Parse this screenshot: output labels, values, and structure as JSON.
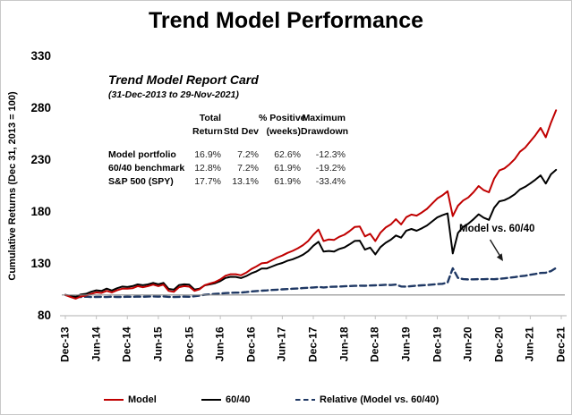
{
  "report_card": {
    "title": "Trend Model Report Card",
    "subtitle": "(31-Dec-2013 to 29-Nov-2021)",
    "columns": [
      [
        "Total",
        "Return"
      ],
      [
        "",
        "Std Dev"
      ],
      [
        "% Positive",
        "(weeks)"
      ],
      [
        "Maximum",
        "Drawdown"
      ]
    ],
    "rows": [
      {
        "label": "Model portfolio",
        "values": [
          "16.9%",
          "7.2%",
          "62.6%",
          "-12.3%"
        ]
      },
      {
        "label": "60/40 benchmark",
        "values": [
          "12.8%",
          "7.2%",
          "61.9%",
          "-19.2%"
        ]
      },
      {
        "label": "S&P 500 (SPY)",
        "values": [
          "17.7%",
          "13.1%",
          "61.9%",
          "-33.4%"
        ]
      }
    ]
  },
  "annotation": {
    "text": "Model vs. 60/40"
  },
  "chart_data": {
    "type": "line",
    "title": "Trend Model Performance",
    "ylabel": "Cumulative Returns (Dec 31, 2013 = 100)",
    "xlabel": "",
    "ylim": [
      80,
      330
    ],
    "y_ticks": [
      330,
      280,
      230,
      180,
      130,
      80
    ],
    "x_tick_labels": [
      "Dec-13",
      "Jun-14",
      "Dec-14",
      "Jun-15",
      "Dec-15",
      "Jun-16",
      "Dec-16",
      "Jun-17",
      "Dec-17",
      "Jun-18",
      "Dec-18",
      "Jun-19",
      "Dec-19",
      "Jun-20",
      "Dec-20",
      "Jun-21",
      "Dec-21"
    ],
    "x_unit": "months since Dec-2013 (monthly points, Dec-13 = index 0 through Nov-21 = index 95)",
    "baseline": 100,
    "baseline_color": "#8C8C8C",
    "grid": false,
    "legend_position": "bottom",
    "series": [
      {
        "name": "Model",
        "color": "#C00000",
        "style": "solid",
        "values": [
          100,
          98,
          96.5,
          98.5,
          99.5,
          101,
          102.5,
          102,
          104,
          102.5,
          104.5,
          106,
          106,
          106.5,
          108.5,
          107.5,
          108.5,
          110,
          108.5,
          110,
          104,
          103,
          107.5,
          108.5,
          108,
          104,
          105.5,
          109.5,
          111,
          112.5,
          115,
          118.5,
          120,
          120,
          119,
          121.5,
          125,
          127.5,
          130.5,
          131,
          133.5,
          136,
          138,
          140.5,
          142.5,
          145,
          148,
          152,
          158,
          163,
          152,
          153.5,
          153,
          156,
          158,
          161.5,
          165.5,
          166,
          156.5,
          159,
          152,
          160,
          165,
          168,
          173,
          168,
          175,
          177.5,
          176.5,
          179.5,
          183,
          188,
          193,
          196,
          200,
          176,
          186,
          191,
          194,
          199,
          205,
          201,
          199,
          212,
          220,
          222,
          226,
          231,
          238,
          242,
          248,
          254,
          261,
          252,
          266,
          278
        ]
      },
      {
        "name": "60/40",
        "color": "#000000",
        "style": "solid",
        "values": [
          100,
          99,
          98.2,
          100.5,
          101.1,
          103.1,
          104.5,
          103.9,
          106.1,
          104.3,
          106.5,
          108.1,
          107.7,
          108.5,
          110.2,
          109.4,
          110.2,
          111.6,
          110.3,
          111.6,
          105.9,
          105.1,
          109.5,
          110.3,
          109.9,
          105.3,
          106.1,
          109.3,
          110.3,
          111.4,
          113.4,
          116.4,
          117.5,
          117.4,
          116.3,
          118.2,
          120.9,
          122.8,
          125.4,
          125.5,
          127.4,
          129.4,
          130.9,
          132.9,
          134.4,
          136.4,
          138.8,
          142.2,
          147.4,
          151.3,
          141.8,
          142.4,
          141.8,
          144.3,
          145.8,
          148.7,
          152.1,
          152.3,
          143.7,
          145.7,
          139.1,
          146.1,
          150.3,
          153.3,
          157.3,
          155.3,
          162,
          163.6,
          161.9,
          164.2,
          167,
          170.9,
          174.7,
          176.9,
          178.6,
          140,
          159.7,
          165.7,
          168.7,
          172.9,
          177.8,
          174.5,
          172.4,
          184,
          190.3,
          191.4,
          193.8,
          197.1,
          201.7,
          204.2,
          207.5,
          211.1,
          215.3,
          207.4,
          216.3,
          220.6
        ]
      },
      {
        "name": "Relative (Model vs. 60/40)",
        "color": "#1F3864",
        "style": "dashed",
        "values": [
          100,
          99,
          98.3,
          98,
          98.4,
          98,
          98.1,
          98.2,
          98,
          98.3,
          98.1,
          98.1,
          98.4,
          98.2,
          98.5,
          98.3,
          98.5,
          98.6,
          98.4,
          98.6,
          98.2,
          98,
          98.2,
          98.4,
          98.3,
          98.8,
          99.4,
          100.2,
          100.6,
          101,
          101.4,
          101.8,
          102.1,
          102.2,
          102.3,
          102.8,
          103.4,
          103.8,
          104.1,
          104.4,
          104.8,
          105.1,
          105.4,
          105.7,
          106,
          106.3,
          106.6,
          106.9,
          107.2,
          107.7,
          107.2,
          107.8,
          107.9,
          108.1,
          108.4,
          108.6,
          108.8,
          109,
          108.9,
          109.1,
          109.3,
          109.5,
          109.8,
          109.6,
          110,
          108.2,
          108,
          108.5,
          109,
          109.3,
          109.6,
          110,
          110.5,
          110.8,
          112,
          125.7,
          116.5,
          115.3,
          115,
          115.1,
          115.3,
          115.2,
          115.4,
          115.2,
          115.6,
          116,
          116.6,
          117.2,
          118,
          118.5,
          119.5,
          120.3,
          121.2,
          121.5,
          123,
          126
        ]
      }
    ]
  }
}
